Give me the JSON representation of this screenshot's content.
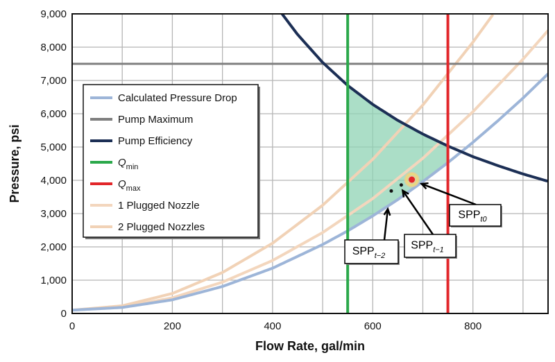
{
  "chart_data": {
    "type": "line",
    "xlabel": "Flow Rate, gal/min",
    "ylabel": "Pressure, psi",
    "xlim": [
      0,
      950
    ],
    "ylim": [
      0,
      9000
    ],
    "xticks": [
      0,
      200,
      400,
      600,
      800
    ],
    "xtick_labels": [
      "0",
      "200",
      "400",
      "600",
      "800"
    ],
    "yticks": [
      0,
      1000,
      2000,
      3000,
      4000,
      5000,
      6000,
      7000,
      8000,
      9000
    ],
    "ytick_labels": [
      "0",
      "1,000",
      "2,000",
      "3,000",
      "4,000",
      "5,000",
      "6,000",
      "7,000",
      "8,000",
      "9,000"
    ],
    "grid": true,
    "grid_step": {
      "x": 100,
      "y": 1000
    },
    "legend_position": "center-left",
    "series": [
      {
        "name": "Calculated Pressure Drop",
        "color": "#9db5d8",
        "x": [
          0,
          100,
          200,
          300,
          400,
          500,
          550,
          600,
          650,
          700,
          750,
          800,
          850,
          900,
          950
        ],
        "y": [
          100,
          180,
          410,
          810,
          1360,
          2070,
          2480,
          2930,
          3420,
          3960,
          4530,
          5140,
          5790,
          6470,
          7200
        ]
      },
      {
        "name": "Pump Maximum",
        "color": "#7f7f7f",
        "x": [
          0,
          950
        ],
        "y": [
          7500,
          7500
        ]
      },
      {
        "name": "Pump Efficiency",
        "color": "#1c2f55",
        "x": [
          419,
          450,
          500,
          550,
          600,
          650,
          700,
          750,
          800,
          850,
          900,
          950
        ],
        "y": [
          9000,
          8380,
          7540,
          6850,
          6280,
          5800,
          5390,
          5030,
          4710,
          4440,
          4190,
          3970
        ]
      },
      {
        "name": "Q",
        "sub": "min",
        "color": "#2aa84a",
        "x": [
          550,
          550
        ],
        "y": [
          0,
          9000
        ]
      },
      {
        "name": "Q",
        "sub": "max",
        "color": "#e2262a",
        "x": [
          750,
          750
        ],
        "y": [
          0,
          9000
        ]
      },
      {
        "name": "1 Plugged Nozzle",
        "color": "#f3d6bd",
        "x": [
          0,
          100,
          200,
          300,
          400,
          500,
          600,
          700,
          800,
          900,
          950
        ],
        "y": [
          100,
          190,
          470,
          940,
          1590,
          2430,
          3450,
          4660,
          6060,
          7640,
          8500
        ]
      },
      {
        "name": "2 Plugged Nozzles",
        "color": "#f1d2b6",
        "x": [
          0,
          100,
          200,
          300,
          400,
          500,
          600,
          700,
          800,
          841
        ],
        "y": [
          100,
          230,
          600,
          1230,
          2110,
          3250,
          4630,
          6260,
          8150,
          9000
        ]
      }
    ],
    "shaded_region": {
      "between": [
        "Calculated Pressure Drop",
        "Pump Efficiency"
      ],
      "x_range": [
        550,
        750
      ],
      "color": "#8fd3b4"
    },
    "points": [
      {
        "label": "SPP",
        "sub": "t−2",
        "x": 637,
        "y": 3680,
        "color": "#111111"
      },
      {
        "label": "SPP",
        "sub": "t−1",
        "x": 657,
        "y": 3860,
        "color": "#111111"
      },
      {
        "label": "SPP",
        "sub": "t0",
        "x": 678,
        "y": 4020,
        "color": "#e2262a"
      }
    ]
  }
}
